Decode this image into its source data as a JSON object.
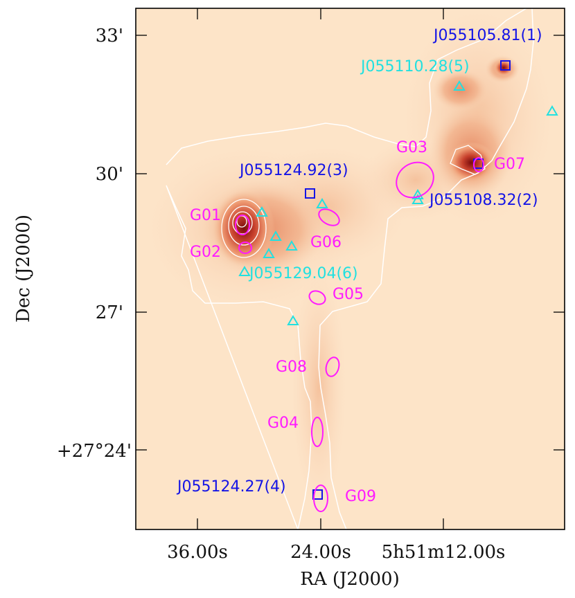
{
  "axes": {
    "xlabel": "RA (J2000)",
    "ylabel": "Dec (J2000)",
    "x_ticks": [
      "36.00s",
      "24.00s",
      "5h51m12.00s"
    ],
    "y_ticks": [
      "33'",
      "30'",
      "27'",
      "+27°24'"
    ]
  },
  "colors": {
    "blue_label": "#1414e6",
    "cyan_label": "#22e0e0",
    "magenta_label": "#ff1aff",
    "contour": "#ffffff",
    "background_map_low": "#fde2c6",
    "background_map_high": "#7a0c0c"
  },
  "labels": {
    "J1": "J055105.81(1)",
    "J5": "J055110.28(5)",
    "J3": "J055124.92(3)",
    "J2": "J055108.32(2)",
    "J6": "J055129.04(6)",
    "J4": "J055124.27(4)",
    "G01": "G01",
    "G02": "G02",
    "G03": "G03",
    "G04": "G04",
    "G05": "G05",
    "G06": "G06",
    "G07": "G07",
    "G08": "G08",
    "G09": "G09"
  },
  "marker_types": {
    "square": "blue-square-source",
    "triangle": "cyan-triangle-source",
    "ellipse": "magenta-ellipse-clump"
  }
}
